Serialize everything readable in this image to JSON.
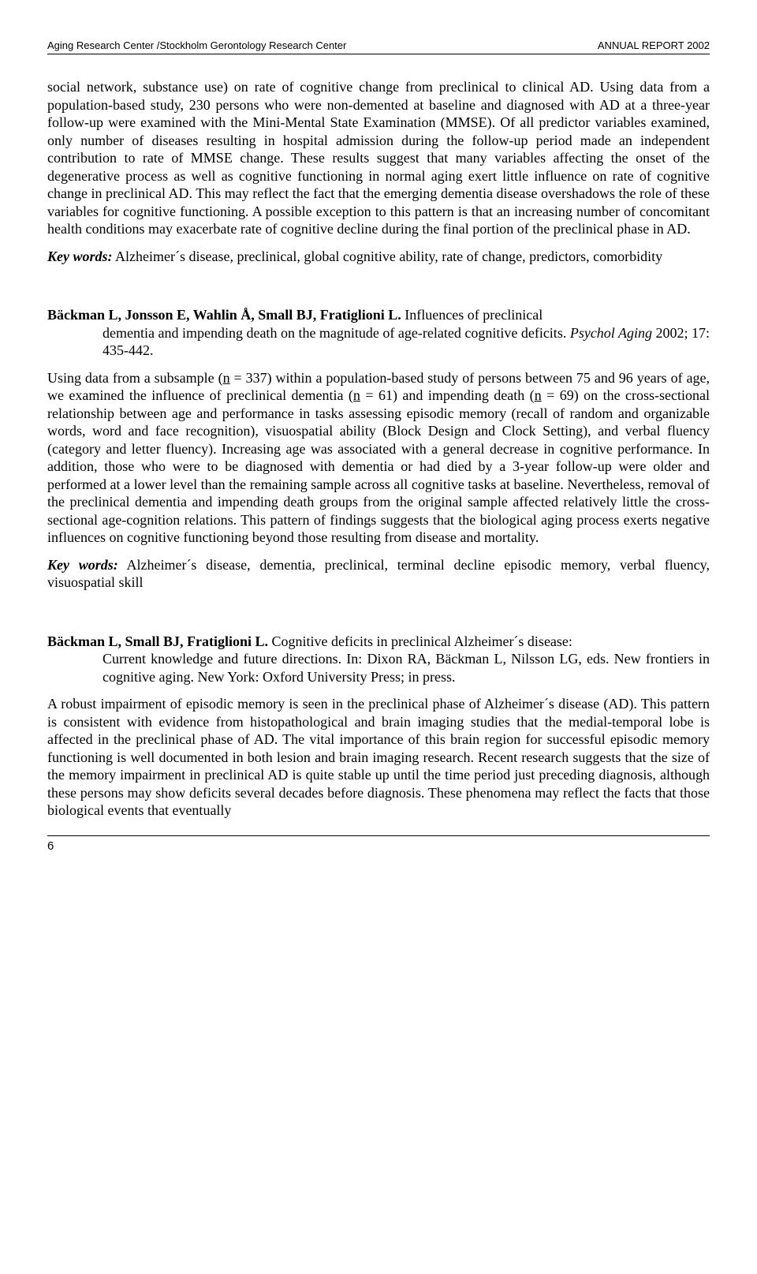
{
  "header": {
    "left": "Aging Research Center /Stockholm Gerontology Research Center",
    "right": "ANNUAL REPORT 2002"
  },
  "para1": "social network, substance use) on rate of cognitive change from preclinical to clinical AD. Using data from a population-based study, 230 persons who were non-demented at baseline and diagnosed with AD at a three-year follow-up were examined with the Mini-Mental State Examination (MMSE). Of all predictor variables examined, only number of diseases resulting in hospital admission during the follow-up period made an independent contribution to rate of MMSE change. These results suggest that many variables affecting the onset of the degenerative process as well as cognitive functioning in normal aging exert little influence on rate of cognitive change in preclinical AD. This may reflect the fact that the emerging dementia disease overshadows the role of these variables for cognitive functioning. A possible exception to this pattern is that an increasing number of concomitant health conditions may exacerbate rate of cognitive decline during the final portion of the preclinical phase in AD.",
  "keywords1_label": "Key words:",
  "keywords1_text": " Alzheimer´s disease, preclinical, global cognitive ability, rate of change, predictors, comorbidity",
  "ref2": {
    "authors": "Bäckman L, Jonsson E, Wahlin Å, Small BJ, Fratiglioni L.",
    "title_a": " Influences of preclinical ",
    "title_b": "dementia and impending death on the magnitude of age-related cognitive deficits. ",
    "journal": "Psychol Aging",
    "journal_tail": " 2002; 17: 435-442."
  },
  "para2a": "Using data from a subsample (",
  "para2b": " = 337) within a population-based study of persons between 75 and 96 years of age, we examined the influence of preclinical dementia (",
  "para2c": " = 61) and impending death (",
  "para2d": " = 69) on the cross-sectional relationship between age and performance in tasks assessing episodic memory (recall of random and organizable words, word and face recognition), visuospatial ability (Block Design and Clock Setting), and verbal fluency (category and letter fluency). Increasing age was associated with a general decrease in cognitive performance. In addition, those who were to be diagnosed with dementia or had died by a 3-year follow-up were older and performed at a lower level than the remaining sample across all cognitive tasks at baseline. Nevertheless, removal of the preclinical dementia and impending death groups from the original sample affected relatively little the cross-sectional age-cognition relations. This pattern of findings suggests that the biological aging process exerts negative influences on cognitive functioning beyond those resulting from disease and mortality.",
  "n_letter": "n",
  "keywords2_label": "Key words:",
  "keywords2_text": " Alzheimer´s disease, dementia, preclinical, terminal decline episodic memory, verbal fluency, visuospatial skill",
  "ref3": {
    "authors": "Bäckman L, Small BJ, Fratiglioni L.",
    "title_a": " Cognitive deficits in preclinical Alzheimer´s disease: ",
    "title_b": "Current knowledge and future directions. In: Dixon RA, Bäckman L, Nilsson LG, eds. New frontiers in cognitive aging. New York: Oxford University Press; in press."
  },
  "para3": "A robust impairment of episodic memory is seen in the preclinical phase of Alzheimer´s disease (AD). This pattern is consistent with evidence from histopathological and brain imaging studies that the medial-temporal lobe is affected in the preclinical phase of AD. The vital importance of this brain region for successful episodic memory functioning is well documented in both lesion and brain imaging research.  Recent research suggests that the size of the memory impairment in preclinical AD is quite stable up until the time period just preceding diagnosis, although these persons may show deficits several decades before diagnosis. These phenomena may reflect the facts that those biological events that eventually",
  "page_number": "6"
}
